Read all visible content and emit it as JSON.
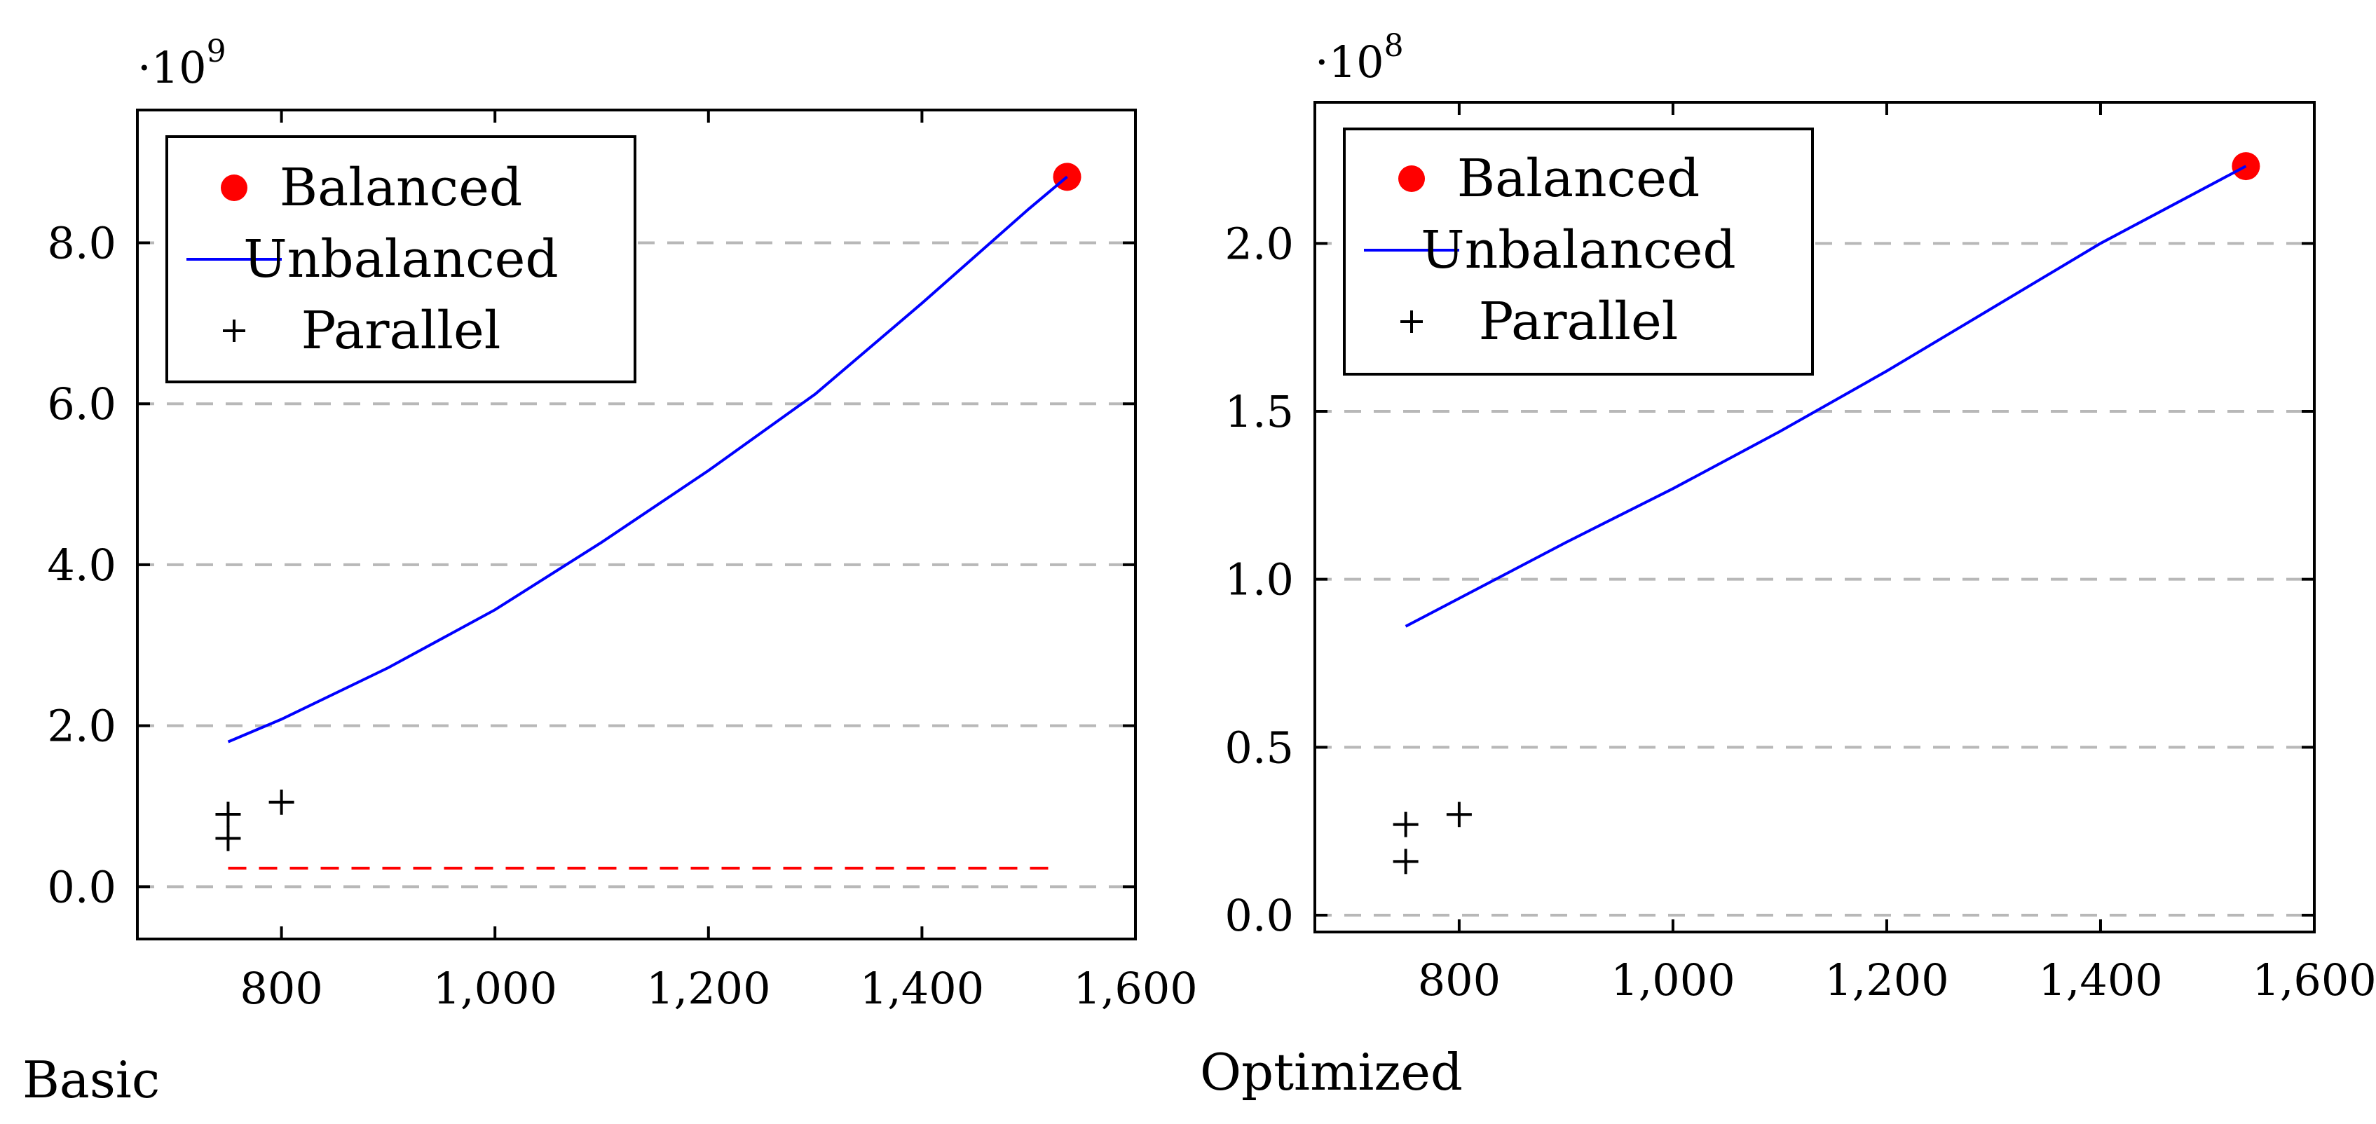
{
  "chart_data": [
    {
      "type": "line",
      "caption": "Basic",
      "y_multiplier": {
        "base": "·10",
        "exponent": "9"
      },
      "xlabel": "",
      "ylabel": "",
      "xlim": [
        665,
        1600
      ],
      "ylim": [
        -0.65,
        9.65
      ],
      "x_ticks": [
        800,
        1000,
        1200,
        1400,
        1600
      ],
      "x_tick_labels": [
        "800",
        "1,000",
        "1,200",
        "1,400",
        "1,600"
      ],
      "y_ticks": [
        0,
        2,
        4,
        6,
        8
      ],
      "y_tick_labels": [
        "0.0",
        "2.0",
        "4.0",
        "6.0",
        "8.0"
      ],
      "grid": "horizontal-dashed",
      "legend_position": "top-left",
      "series": [
        {
          "name": "Balanced",
          "style": "red-dot",
          "color": "#ff0000",
          "points": [
            [
              1536,
              8.82
            ]
          ]
        },
        {
          "name": "Unbalanced",
          "style": "line",
          "color": "#0000ff",
          "points": [
            [
              750,
              1.8
            ],
            [
              800,
              2.08
            ],
            [
              900,
              2.72
            ],
            [
              1000,
              3.44
            ],
            [
              1100,
              4.28
            ],
            [
              1200,
              5.17
            ],
            [
              1300,
              6.12
            ],
            [
              1400,
              7.25
            ],
            [
              1500,
              8.42
            ],
            [
              1536,
              8.82
            ]
          ]
        },
        {
          "name": "Parallel",
          "style": "plus",
          "color": "#000000",
          "points": [
            [
              750,
              0.6
            ],
            [
              750,
              0.9
            ],
            [
              800,
              1.05
            ]
          ]
        },
        {
          "name": "",
          "style": "dashed-line",
          "color": "#ff0000",
          "points": [
            [
              750,
              0.23
            ],
            [
              1525,
              0.23
            ]
          ]
        }
      ]
    },
    {
      "type": "line",
      "caption": "Optimized",
      "y_multiplier": {
        "base": "·10",
        "exponent": "8"
      },
      "xlabel": "",
      "ylabel": "",
      "xlim": [
        665,
        1600
      ],
      "ylim": [
        -0.05,
        2.42
      ],
      "x_ticks": [
        800,
        1000,
        1200,
        1400,
        1600
      ],
      "x_tick_labels": [
        "800",
        "1,000",
        "1,200",
        "1,400",
        "1,600"
      ],
      "y_ticks": [
        0,
        0.5,
        1.0,
        1.5,
        2.0
      ],
      "y_tick_labels": [
        "0.0",
        "0.5",
        "1.0",
        "1.5",
        "2.0"
      ],
      "grid": "horizontal-dashed",
      "legend_position": "top-left",
      "series": [
        {
          "name": "Balanced",
          "style": "red-dot",
          "color": "#ff0000",
          "points": [
            [
              1536,
              2.23
            ]
          ]
        },
        {
          "name": "Unbalanced",
          "style": "line",
          "color": "#0000ff",
          "points": [
            [
              750,
              0.86
            ],
            [
              900,
              1.11
            ],
            [
              1000,
              1.27
            ],
            [
              1100,
              1.44
            ],
            [
              1200,
              1.62
            ],
            [
              1300,
              1.81
            ],
            [
              1400,
              2.0
            ],
            [
              1536,
              2.23
            ]
          ]
        },
        {
          "name": "Parallel",
          "style": "plus",
          "color": "#000000",
          "points": [
            [
              750,
              0.16
            ],
            [
              750,
              0.27
            ],
            [
              800,
              0.3
            ]
          ]
        }
      ]
    }
  ]
}
